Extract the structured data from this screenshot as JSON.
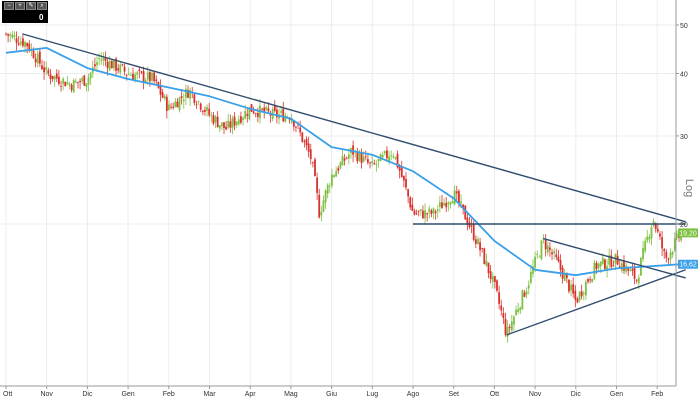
{
  "toolbar": {
    "buttons": [
      {
        "name": "zoom-out-icon",
        "glyph": "−"
      },
      {
        "name": "zoom-in-icon",
        "glyph": "+"
      },
      {
        "name": "pencil-icon",
        "glyph": "✎"
      },
      {
        "name": "search-icon",
        "glyph": "⌕"
      }
    ],
    "count": "0"
  },
  "scale_label": "Log",
  "price_tags": {
    "last_price": "19,20",
    "ma_value": "16,62"
  },
  "colors": {
    "up": "#7cc142",
    "down": "#d9302c",
    "trendline": "#2f4d6e",
    "moving_average": "#3aa0e8",
    "last_tag": "#7cc142",
    "ma_tag": "#3aa0e8"
  },
  "chart_data": {
    "type": "candlestick",
    "scale": "log",
    "ylim": [
      10,
      55
    ],
    "y_ticks": [
      "50",
      "40",
      "30",
      "20"
    ],
    "x_ticks": [
      "Ott",
      "Nov",
      "Dic",
      "Gen",
      "Feb",
      "Mar",
      "Apr",
      "Mag",
      "Giu",
      "Lug",
      "Ago",
      "Set",
      "Ott",
      "Nov",
      "Dic",
      "Gen",
      "Feb"
    ],
    "close_path": [
      {
        "m": 0,
        "v": 48
      },
      {
        "m": 0.5,
        "v": 46
      },
      {
        "m": 1,
        "v": 40
      },
      {
        "m": 1.6,
        "v": 38
      },
      {
        "m": 2,
        "v": 39
      },
      {
        "m": 2.3,
        "v": 43
      },
      {
        "m": 3,
        "v": 40
      },
      {
        "m": 3.6,
        "v": 39
      },
      {
        "m": 4,
        "v": 34
      },
      {
        "m": 4.5,
        "v": 37
      },
      {
        "m": 5,
        "v": 33
      },
      {
        "m": 5.4,
        "v": 31
      },
      {
        "m": 6,
        "v": 34
      },
      {
        "m": 6.6,
        "v": 33
      },
      {
        "m": 7,
        "v": 33
      },
      {
        "m": 7.5,
        "v": 27
      },
      {
        "m": 7.7,
        "v": 21
      },
      {
        "m": 8,
        "v": 25
      },
      {
        "m": 8.5,
        "v": 28
      },
      {
        "m": 9,
        "v": 26
      },
      {
        "m": 9.5,
        "v": 28
      },
      {
        "m": 10,
        "v": 21
      },
      {
        "m": 10.5,
        "v": 21
      },
      {
        "m": 11,
        "v": 23
      },
      {
        "m": 11.5,
        "v": 19
      },
      {
        "m": 12,
        "v": 15
      },
      {
        "m": 12.3,
        "v": 12
      },
      {
        "m": 12.8,
        "v": 15
      },
      {
        "m": 13.2,
        "v": 18.5
      },
      {
        "m": 13.5,
        "v": 17
      },
      {
        "m": 14,
        "v": 14
      },
      {
        "m": 14.5,
        "v": 16.5
      },
      {
        "m": 15,
        "v": 17
      },
      {
        "m": 15.5,
        "v": 15.5
      },
      {
        "m": 15.9,
        "v": 20.5
      },
      {
        "m": 16.2,
        "v": 17
      },
      {
        "m": 16.6,
        "v": 19.2
      }
    ],
    "moving_average": [
      {
        "m": 0,
        "v": 44
      },
      {
        "m": 1,
        "v": 45
      },
      {
        "m": 2,
        "v": 41
      },
      {
        "m": 3,
        "v": 39
      },
      {
        "m": 4,
        "v": 37.5
      },
      {
        "m": 5,
        "v": 36
      },
      {
        "m": 6,
        "v": 34
      },
      {
        "m": 7,
        "v": 32.5
      },
      {
        "m": 8,
        "v": 28.5
      },
      {
        "m": 9,
        "v": 27.5
      },
      {
        "m": 10,
        "v": 25.5
      },
      {
        "m": 11,
        "v": 22.5
      },
      {
        "m": 12,
        "v": 18.5
      },
      {
        "m": 13,
        "v": 16.2
      },
      {
        "m": 14,
        "v": 15.8
      },
      {
        "m": 15,
        "v": 16.3
      },
      {
        "m": 16,
        "v": 16.5
      },
      {
        "m": 16.6,
        "v": 16.62
      }
    ],
    "trendlines": [
      {
        "from": {
          "m": 0.4,
          "v": 48
        },
        "to": {
          "m": 16.7,
          "v": 20.2
        }
      },
      {
        "from": {
          "m": 10,
          "v": 20
        },
        "to": {
          "m": 16.7,
          "v": 20
        }
      },
      {
        "from": {
          "m": 12.3,
          "v": 12
        },
        "to": {
          "m": 16.7,
          "v": 16.2
        }
      },
      {
        "from": {
          "m": 13.2,
          "v": 18.7
        },
        "to": {
          "m": 16.7,
          "v": 15.6
        }
      }
    ]
  }
}
